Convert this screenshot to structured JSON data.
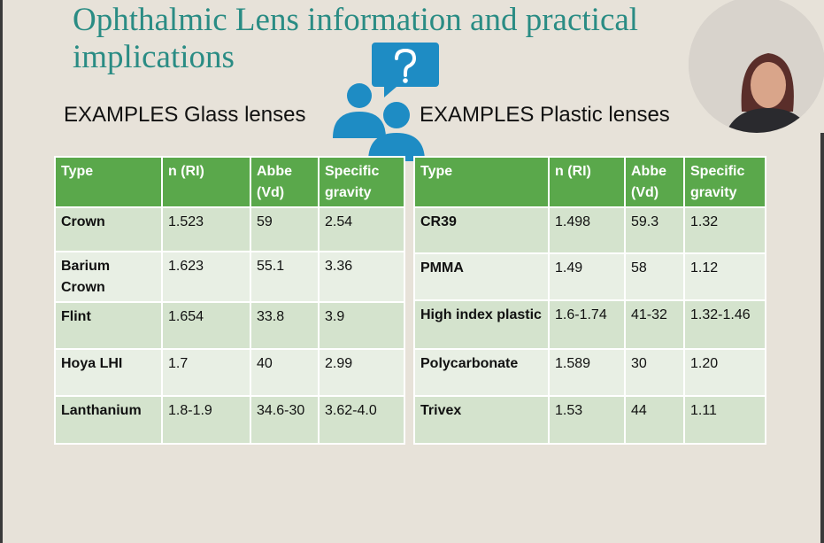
{
  "header": {
    "title": "Ophthalmic Lens information and practical implications"
  },
  "tables": [
    {
      "heading": "EXAMPLES Glass lenses",
      "columns": [
        "Type",
        "n (RI)",
        "Abbe (Vd)",
        "Specific gravity"
      ],
      "rows": [
        [
          "Crown",
          "1.523",
          "59",
          "2.54"
        ],
        [
          "Barium Crown",
          "1.623",
          "55.1",
          "3.36"
        ],
        [
          "Flint",
          "1.654",
          "33.8",
          "3.9"
        ],
        [
          "Hoya LHI",
          "1.7",
          "40",
          "2.99"
        ],
        [
          "Lanthanium",
          "1.8-1.9",
          "34.6-30",
          "3.62-4.0"
        ]
      ]
    },
    {
      "heading": "EXAMPLES Plastic lenses",
      "columns": [
        "Type",
        "n (RI)",
        "Abbe (Vd)",
        "Specific gravity"
      ],
      "rows": [
        [
          "CR39",
          "1.498",
          "59.3",
          "1.32"
        ],
        [
          "PMMA",
          "1.49",
          "58",
          "1.12"
        ],
        [
          "High index plastic",
          "1.6-1.74",
          "41-32",
          "1.32-1.46"
        ],
        [
          "Polycarbonate",
          "1.589",
          "30",
          "1.20"
        ],
        [
          "Trivex",
          "1.53",
          "44",
          "1.11"
        ]
      ]
    }
  ]
}
